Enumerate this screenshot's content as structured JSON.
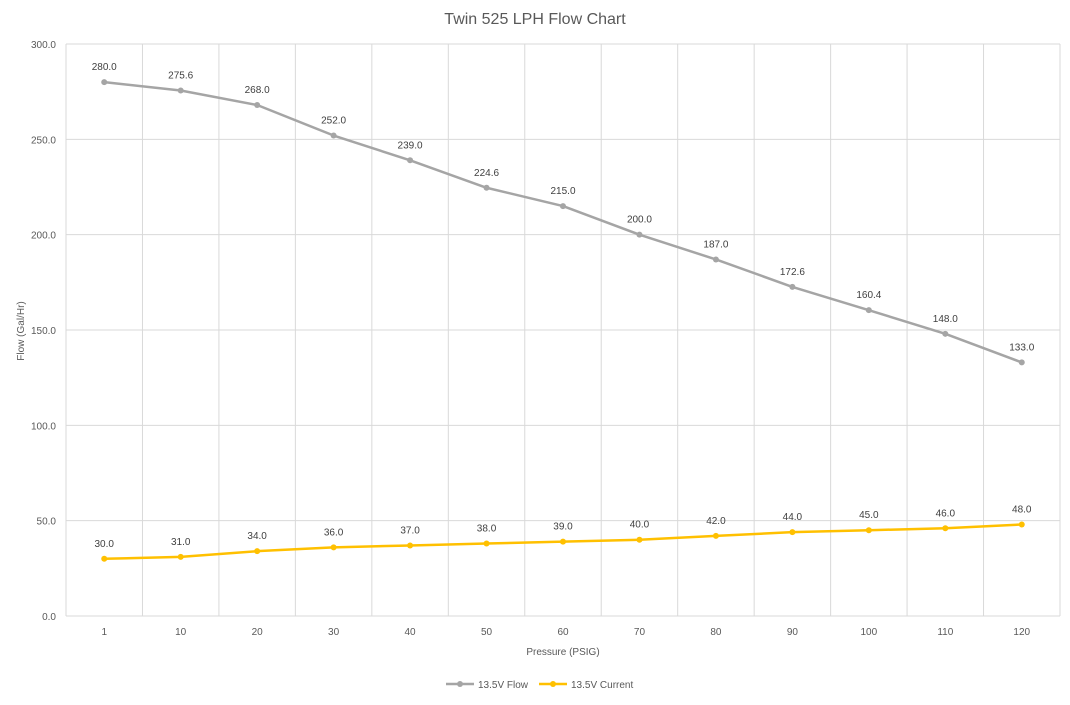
{
  "chart_data": {
    "type": "line",
    "title": "Twin 525 LPH Flow Chart",
    "xlabel": "Pressure (PSIG)",
    "ylabel": "Flow (Gal/Hr)",
    "categories": [
      "1",
      "10",
      "20",
      "30",
      "40",
      "50",
      "60",
      "70",
      "80",
      "90",
      "100",
      "110",
      "120"
    ],
    "ylim": [
      0,
      300
    ],
    "yticks": [
      "0.0",
      "50.0",
      "100.0",
      "150.0",
      "200.0",
      "250.0",
      "300.0"
    ],
    "grid": true,
    "legend_position": "bottom",
    "series": [
      {
        "name": "13.5V Flow",
        "color": "#a5a5a5",
        "values": [
          280.0,
          275.6,
          268.0,
          252.0,
          239.0,
          224.6,
          215.0,
          200.0,
          187.0,
          172.6,
          160.4,
          148.0,
          133.0
        ],
        "labels": [
          "280.0",
          "275.6",
          "268.0",
          "252.0",
          "239.0",
          "224.6",
          "215.0",
          "200.0",
          "187.0",
          "172.6",
          "160.4",
          "148.0",
          "133.0"
        ]
      },
      {
        "name": "13.5V Current",
        "color": "#ffc000",
        "values": [
          30.0,
          31.0,
          34.0,
          36.0,
          37.0,
          38.0,
          39.0,
          40.0,
          42.0,
          44.0,
          45.0,
          46.0,
          48.0
        ],
        "labels": [
          "30.0",
          "31.0",
          "34.0",
          "36.0",
          "37.0",
          "38.0",
          "39.0",
          "40.0",
          "42.0",
          "44.0",
          "45.0",
          "46.0",
          "48.0"
        ]
      }
    ]
  }
}
